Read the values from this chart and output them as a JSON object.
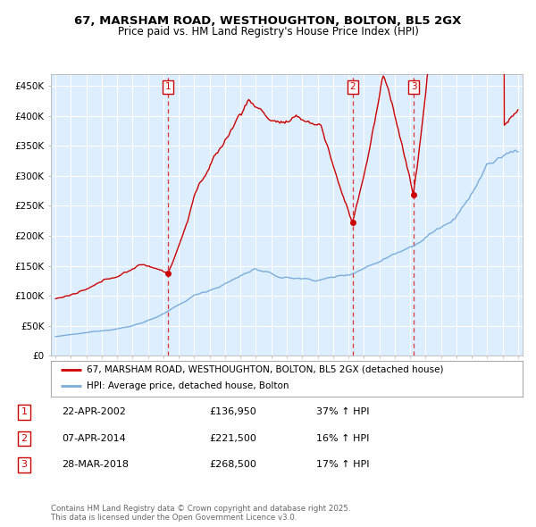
{
  "title1": "67, MARSHAM ROAD, WESTHOUGHTON, BOLTON, BL5 2GX",
  "title2": "Price paid vs. HM Land Registry's House Price Index (HPI)",
  "legend_line1": "67, MARSHAM ROAD, WESTHOUGHTON, BOLTON, BL5 2GX (detached house)",
  "legend_line2": "HPI: Average price, detached house, Bolton",
  "sale1_date": "22-APR-2002",
  "sale1_price": 136950,
  "sale1_hpi": "37% ↑ HPI",
  "sale2_date": "07-APR-2014",
  "sale2_price": 221500,
  "sale2_hpi": "16% ↑ HPI",
  "sale3_date": "28-MAR-2018",
  "sale3_price": 268500,
  "sale3_hpi": "17% ↑ HPI",
  "footer": "Contains HM Land Registry data © Crown copyright and database right 2025.\nThis data is licensed under the Open Government Licence v3.0.",
  "red_color": "#cc0000",
  "blue_color": "#7aadda",
  "bg_color": "#ddeeff",
  "grid_color": "#ffffff",
  "vline_color": "#dd3333",
  "dot_color": "#cc0000",
  "sale1_x": 2002.3,
  "sale2_x": 2014.27,
  "sale3_x": 2018.24,
  "xmin": 1994.7,
  "xmax": 2025.3,
  "ymin": 0,
  "ymax": 470000
}
